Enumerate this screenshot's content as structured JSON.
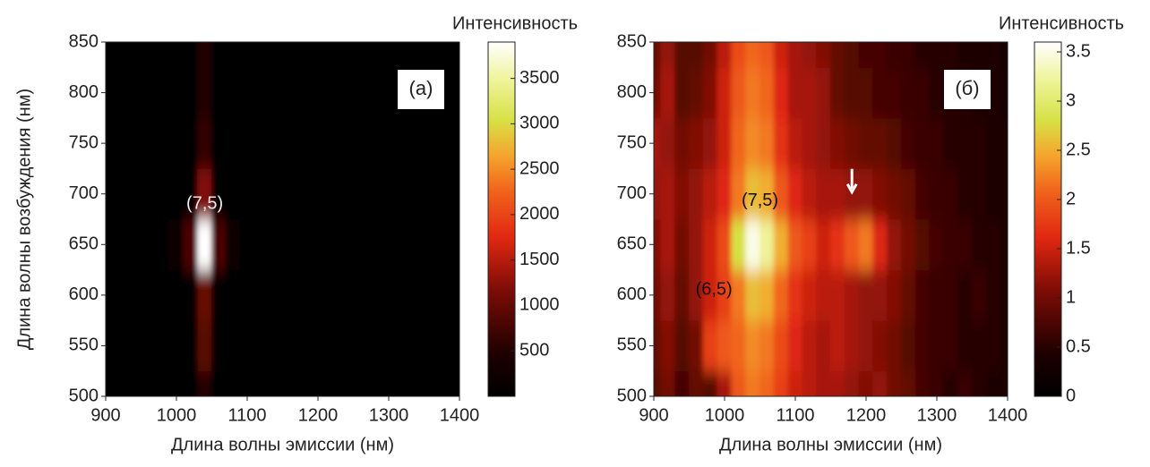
{
  "chart_data": [
    {
      "type": "heatmap",
      "colormap": "hot",
      "panel_label": "(a)",
      "xlabel": "Длина волны эмиссии (нм)",
      "ylabel": "Длина волны возбуждения (нм)",
      "colorbar_label": "Интенсивность",
      "xlim": [
        900,
        1400
      ],
      "xticks": [
        900,
        1000,
        1100,
        1200,
        1300,
        1400
      ],
      "ylim": [
        500,
        850
      ],
      "yticks": [
        500,
        550,
        600,
        650,
        700,
        750,
        800,
        850
      ],
      "clim": [
        0,
        3900
      ],
      "cticks": [
        500,
        1000,
        1500,
        2000,
        2500,
        3000,
        3500
      ],
      "x": [
        900,
        920,
        940,
        960,
        980,
        1000,
        1020,
        1040,
        1060,
        1080,
        1100,
        1120,
        1140,
        1160,
        1180,
        1200,
        1220,
        1240,
        1260,
        1280,
        1300,
        1320,
        1340,
        1360,
        1380,
        1400
      ],
      "y": [
        500,
        550,
        600,
        650,
        700,
        750,
        800,
        850
      ],
      "z": [
        [
          0,
          0,
          0,
          0,
          0,
          0,
          50,
          500,
          50,
          0,
          0,
          0,
          0,
          0,
          0,
          0,
          0,
          0,
          0,
          0,
          0,
          0,
          0,
          0,
          0,
          0
        ],
        [
          0,
          0,
          0,
          0,
          0,
          0,
          80,
          900,
          80,
          0,
          0,
          0,
          0,
          0,
          0,
          0,
          0,
          0,
          0,
          0,
          0,
          0,
          0,
          0,
          0,
          0
        ],
        [
          0,
          0,
          0,
          0,
          0,
          0,
          100,
          1000,
          100,
          0,
          0,
          0,
          0,
          0,
          0,
          0,
          0,
          0,
          0,
          0,
          0,
          0,
          0,
          0,
          0,
          0
        ],
        [
          0,
          0,
          0,
          0,
          0,
          200,
          800,
          3900,
          800,
          200,
          0,
          0,
          0,
          0,
          0,
          0,
          0,
          0,
          0,
          0,
          0,
          0,
          0,
          0,
          0,
          0
        ],
        [
          0,
          0,
          0,
          0,
          0,
          0,
          100,
          1200,
          100,
          0,
          0,
          0,
          0,
          0,
          0,
          0,
          0,
          0,
          0,
          0,
          0,
          0,
          0,
          0,
          0,
          0
        ],
        [
          0,
          0,
          0,
          0,
          0,
          0,
          50,
          600,
          50,
          0,
          0,
          0,
          0,
          0,
          0,
          0,
          0,
          0,
          0,
          0,
          0,
          0,
          0,
          0,
          0,
          0
        ],
        [
          0,
          0,
          0,
          0,
          0,
          0,
          50,
          500,
          50,
          0,
          0,
          0,
          0,
          0,
          0,
          0,
          0,
          0,
          0,
          0,
          0,
          0,
          0,
          0,
          0,
          0
        ],
        [
          0,
          0,
          0,
          0,
          0,
          0,
          50,
          500,
          50,
          0,
          0,
          0,
          0,
          0,
          0,
          0,
          0,
          0,
          0,
          0,
          0,
          0,
          0,
          0,
          0,
          0
        ]
      ],
      "annotations": [
        "(7,5)"
      ]
    },
    {
      "type": "heatmap",
      "colormap": "hot",
      "panel_label": "(б)",
      "xlabel": "Длина волны эмиссии (нм)",
      "colorbar_label": "Интенсивность",
      "xlim": [
        900,
        1400
      ],
      "xticks": [
        900,
        1000,
        1100,
        1200,
        1300,
        1400
      ],
      "ylim": [
        500,
        850
      ],
      "yticks": [
        500,
        550,
        600,
        650,
        700,
        750,
        800,
        850
      ],
      "clim": [
        0,
        3.6
      ],
      "cticks": [
        0,
        0.5,
        1,
        1.5,
        2,
        2.5,
        3,
        3.5
      ],
      "x": [
        900,
        920,
        940,
        960,
        980,
        1000,
        1020,
        1040,
        1060,
        1080,
        1100,
        1120,
        1140,
        1160,
        1180,
        1200,
        1220,
        1240,
        1260,
        1280,
        1300,
        1320,
        1340,
        1360,
        1380,
        1400
      ],
      "y": [
        500,
        550,
        600,
        650,
        700,
        750,
        800,
        850
      ],
      "z": [
        [
          0.8,
          1.0,
          0.7,
          0.9,
          0.8,
          1.3,
          2.0,
          2.2,
          2.1,
          1.8,
          1.5,
          1.4,
          1.3,
          1.3,
          1.2,
          1.1,
          1.2,
          1.0,
          0.9,
          0.7,
          0.6,
          0.5,
          0.6,
          0.5,
          0.4,
          0.4
        ],
        [
          0.9,
          1.1,
          0.8,
          1.0,
          1.8,
          2.0,
          2.1,
          2.3,
          2.2,
          1.9,
          1.6,
          1.4,
          1.3,
          1.4,
          1.3,
          1.2,
          1.1,
          1.0,
          0.8,
          0.7,
          0.6,
          0.6,
          0.5,
          0.5,
          0.5,
          0.4
        ],
        [
          1.0,
          1.2,
          0.9,
          1.2,
          1.5,
          1.8,
          2.2,
          2.6,
          2.5,
          2.1,
          1.7,
          1.5,
          1.4,
          1.4,
          1.3,
          1.2,
          1.2,
          1.1,
          0.9,
          0.7,
          0.6,
          0.6,
          0.5,
          0.6,
          0.5,
          0.4
        ],
        [
          1.1,
          1.3,
          1.0,
          1.2,
          1.5,
          1.9,
          2.8,
          3.5,
          3.2,
          2.5,
          2.0,
          1.8,
          1.5,
          1.7,
          2.0,
          2.2,
          1.6,
          1.2,
          1.0,
          0.8,
          0.7,
          0.6,
          0.6,
          0.5,
          0.5,
          0.4
        ],
        [
          1.2,
          1.3,
          1.1,
          1.2,
          1.4,
          1.6,
          2.2,
          2.6,
          2.5,
          2.0,
          1.6,
          1.4,
          1.3,
          1.3,
          1.2,
          1.2,
          1.1,
          1.0,
          0.9,
          0.7,
          0.6,
          0.6,
          0.5,
          0.5,
          0.4,
          0.4
        ],
        [
          1.3,
          1.2,
          1.0,
          1.1,
          1.2,
          1.5,
          2.1,
          2.3,
          2.2,
          1.7,
          1.4,
          1.3,
          1.2,
          1.1,
          1.0,
          0.9,
          0.9,
          0.8,
          0.7,
          0.6,
          0.6,
          0.5,
          0.5,
          0.5,
          0.4,
          0.4
        ],
        [
          1.0,
          1.3,
          0.8,
          0.9,
          1.1,
          1.5,
          2.0,
          2.2,
          2.1,
          1.6,
          1.3,
          1.3,
          1.2,
          0.9,
          0.8,
          0.8,
          0.7,
          0.7,
          0.6,
          0.6,
          0.5,
          0.5,
          0.5,
          0.4,
          0.4,
          0.3
        ],
        [
          0.9,
          1.2,
          0.8,
          0.8,
          1.0,
          1.4,
          1.9,
          2.1,
          2.0,
          1.5,
          1.3,
          1.2,
          1.1,
          0.9,
          0.8,
          0.7,
          0.7,
          0.6,
          0.6,
          0.5,
          0.5,
          0.5,
          0.4,
          0.4,
          0.4,
          0.3
        ]
      ],
      "annotations": [
        "(7,5)",
        "(6,5)"
      ]
    }
  ]
}
